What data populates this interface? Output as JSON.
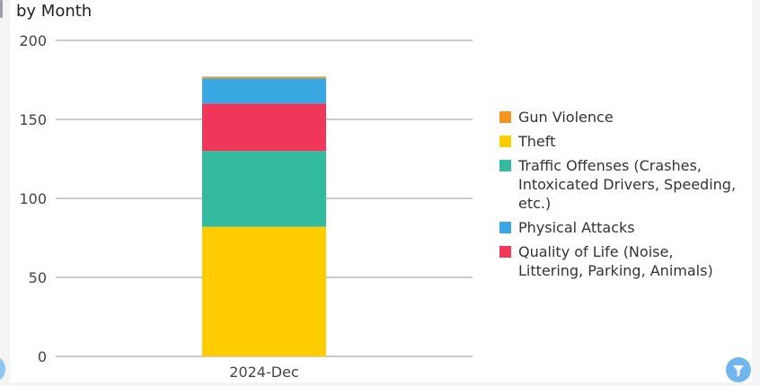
{
  "title": "by Month",
  "colors": {
    "gun_violence": "#f7941d",
    "theft": "#ffcc00",
    "traffic": "#33bb9f",
    "physical": "#38a7e2",
    "quality": "#f0375a",
    "filter_button": "#6fb6ef"
  },
  "icons": {
    "filter": "filter-icon"
  },
  "chart_data": {
    "type": "bar",
    "stacked": true,
    "categories": [
      "2024-Dec"
    ],
    "series": [
      {
        "name": "Theft",
        "values": [
          82
        ],
        "color": "#ffcc00"
      },
      {
        "name": "Traffic Offenses (Crashes, Intoxicated Drivers, Speeding, etc.)",
        "values": [
          48
        ],
        "color": "#33bb9f"
      },
      {
        "name": "Quality of Life (Noise, Littering, Parking, Animals)",
        "values": [
          30
        ],
        "color": "#f0375a"
      },
      {
        "name": "Physical Attacks",
        "values": [
          16
        ],
        "color": "#38a7e2"
      },
      {
        "name": "Gun Violence",
        "values": [
          1
        ],
        "color": "#f7941d"
      }
    ],
    "legend": [
      {
        "name": "Gun Violence",
        "color": "#f7941d"
      },
      {
        "name": "Theft",
        "color": "#ffcc00"
      },
      {
        "name": "Traffic Offenses (Crashes, Intoxicated Drivers, Speeding, etc.)",
        "color": "#33bb9f"
      },
      {
        "name": "Physical Attacks",
        "color": "#38a7e2"
      },
      {
        "name": "Quality of Life (Noise, Littering, Parking, Animals)",
        "color": "#f0375a"
      }
    ],
    "yticks": [
      "0",
      "50",
      "100",
      "150",
      "200"
    ],
    "ylim": [
      0,
      200
    ],
    "grid": true,
    "legend_position": "right"
  }
}
